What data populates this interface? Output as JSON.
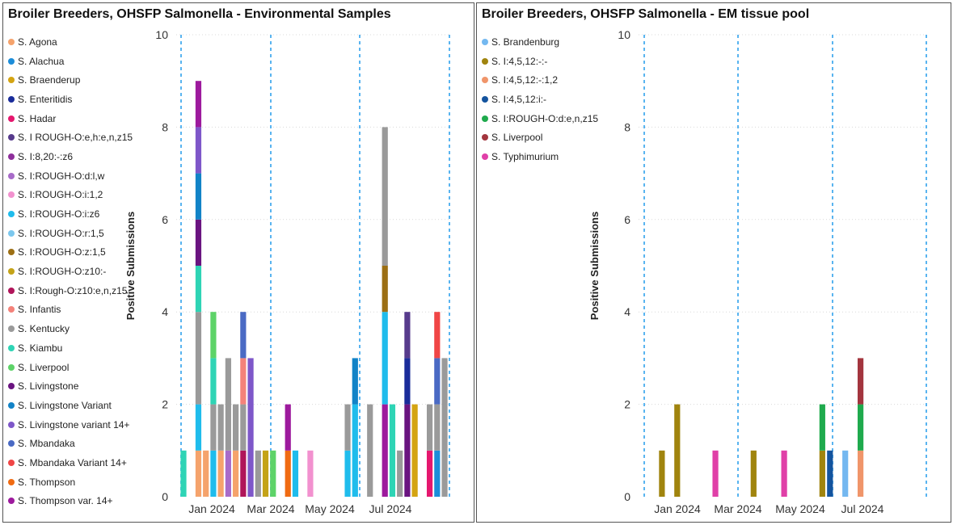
{
  "chart_data": [
    {
      "type": "bar",
      "stacked": true,
      "title": "Broiler Breeders, OHSFP Salmonella - Environmental Samples",
      "ylabel": "Positive Submissions",
      "xlabel": "",
      "ylim": [
        0,
        10
      ],
      "yticks": [
        0,
        2,
        4,
        6,
        8,
        10
      ],
      "xticks": [
        "Jan 2024",
        "Mar 2024",
        "May 2024",
        "Jul 2024"
      ],
      "grid": true,
      "legend_position": "left",
      "legend": [
        {
          "name": "S. Agona",
          "color": "#F5A36C"
        },
        {
          "name": "S. Alachua",
          "color": "#1C8DD9"
        },
        {
          "name": "S. Braenderup",
          "color": "#D4A412"
        },
        {
          "name": "S. Enteritidis",
          "color": "#1A2C9A"
        },
        {
          "name": "S. Hadar",
          "color": "#E5176E"
        },
        {
          "name": "S. I ROUGH-O:e,h:e,n,z15",
          "color": "#573B8C"
        },
        {
          "name": "S. I:8,20:-:z6",
          "color": "#8E2F9B"
        },
        {
          "name": "S. I:ROUGH-O:d:l,w",
          "color": "#A86BC9"
        },
        {
          "name": "S. I:ROUGH-O:i:1,2",
          "color": "#F291CF"
        },
        {
          "name": "S. I:ROUGH-O:i:z6",
          "color": "#1FBCEC"
        },
        {
          "name": "S. I:ROUGH-O:r:1,5",
          "color": "#7CC8EE"
        },
        {
          "name": "S. I:ROUGH-O:z:1,5",
          "color": "#9C6F14"
        },
        {
          "name": "S. I:ROUGH-O:z10:-",
          "color": "#C4A318"
        },
        {
          "name": "S. I:Rough-O:z10:e,n,z15",
          "color": "#B0155A"
        },
        {
          "name": "S. Infantis",
          "color": "#F4827A"
        },
        {
          "name": "S. Kentucky",
          "color": "#9A9A9A"
        },
        {
          "name": "S. Kiambu",
          "color": "#2ED4B5"
        },
        {
          "name": "S. Liverpool",
          "color": "#5DD368"
        },
        {
          "name": "S. Livingstone",
          "color": "#6A1480"
        },
        {
          "name": "S. Livingstone Variant",
          "color": "#1283C7"
        },
        {
          "name": "S. Livingstone variant 14+",
          "color": "#7E57C9"
        },
        {
          "name": "S. Mbandaka",
          "color": "#4A6AC4"
        },
        {
          "name": "S. Mbandaka Variant 14+",
          "color": "#F04646"
        },
        {
          "name": "S. Thompson",
          "color": "#F06B12"
        },
        {
          "name": "S. Thompson var. 14+",
          "color": "#9D1A9D"
        }
      ],
      "weeks": [
        {
          "stack": [
            {
              "s": "S. Kiambu",
              "v": 1
            }
          ]
        },
        {
          "stack": []
        },
        {
          "stack": [
            {
              "s": "S. Agona",
              "v": 1
            },
            {
              "s": "S. I:ROUGH-O:i:z6",
              "v": 1
            },
            {
              "s": "S. Kentucky",
              "v": 2
            },
            {
              "s": "S. Kiambu",
              "v": 1
            },
            {
              "s": "S. Livingstone",
              "v": 1
            },
            {
              "s": "S. Livingstone Variant",
              "v": 1
            },
            {
              "s": "S. Livingstone variant 14+",
              "v": 1
            },
            {
              "s": "S. Thompson var. 14+",
              "v": 1
            }
          ]
        },
        {
          "stack": [
            {
              "s": "S. Agona",
              "v": 1
            }
          ]
        },
        {
          "stack": [
            {
              "s": "S. I:ROUGH-O:i:z6",
              "v": 1
            },
            {
              "s": "S. Kentucky",
              "v": 1
            },
            {
              "s": "S. Kiambu",
              "v": 1
            },
            {
              "s": "S. Liverpool",
              "v": 1
            }
          ]
        },
        {
          "stack": [
            {
              "s": "S. Agona",
              "v": 1
            },
            {
              "s": "S. Kentucky",
              "v": 1
            }
          ]
        },
        {
          "stack": [
            {
              "s": "S. I:ROUGH-O:d:l,w",
              "v": 1
            },
            {
              "s": "S. Kentucky",
              "v": 2
            }
          ]
        },
        {
          "stack": [
            {
              "s": "S. Agona",
              "v": 1
            },
            {
              "s": "S. Kentucky",
              "v": 1
            }
          ]
        },
        {
          "stack": [
            {
              "s": "S. I:Rough-O:z10:e,n,z15",
              "v": 1
            },
            {
              "s": "S. Kentucky",
              "v": 1
            },
            {
              "s": "S. Infantis",
              "v": 1
            },
            {
              "s": "S. Mbandaka",
              "v": 1
            }
          ]
        },
        {
          "stack": [
            {
              "s": "S. Livingstone variant 14+",
              "v": 3
            }
          ]
        },
        {
          "stack": [
            {
              "s": "S. Kentucky",
              "v": 1
            }
          ]
        },
        {
          "stack": [
            {
              "s": "S. I:ROUGH-O:z10:-",
              "v": 1
            }
          ]
        },
        {
          "stack": [
            {
              "s": "S. Liverpool",
              "v": 1
            }
          ]
        },
        {
          "stack": []
        },
        {
          "stack": [
            {
              "s": "S. Thompson",
              "v": 1
            },
            {
              "s": "S. Thompson var. 14+",
              "v": 1
            }
          ]
        },
        {
          "stack": [
            {
              "s": "S. I:ROUGH-O:i:z6",
              "v": 1
            }
          ]
        },
        {
          "stack": []
        },
        {
          "stack": [
            {
              "s": "S. I:ROUGH-O:i:1,2",
              "v": 1
            }
          ]
        },
        {
          "stack": []
        },
        {
          "stack": []
        },
        {
          "stack": []
        },
        {
          "stack": []
        },
        {
          "stack": [
            {
              "s": "S. I:ROUGH-O:i:z6",
              "v": 1
            },
            {
              "s": "S. Kentucky",
              "v": 1
            }
          ]
        },
        {
          "stack": [
            {
              "s": "S. I:ROUGH-O:i:z6",
              "v": 2
            },
            {
              "s": "S. Livingstone Variant",
              "v": 1
            }
          ]
        },
        {
          "stack": []
        },
        {
          "stack": [
            {
              "s": "S. Kentucky",
              "v": 2
            }
          ]
        },
        {
          "stack": []
        },
        {
          "stack": [
            {
              "s": "S. Thompson var. 14+",
              "v": 2
            },
            {
              "s": "S. I:ROUGH-O:i:z6",
              "v": 2
            },
            {
              "s": "S. I:ROUGH-O:z:1,5",
              "v": 1
            },
            {
              "s": "S. Kentucky",
              "v": 3
            }
          ]
        },
        {
          "stack": [
            {
              "s": "S. Kiambu",
              "v": 2
            }
          ]
        },
        {
          "stack": [
            {
              "s": "S. Kentucky",
              "v": 1
            }
          ]
        },
        {
          "stack": [
            {
              "s": "S. Livingstone",
              "v": 2
            },
            {
              "s": "S. Enteritidis",
              "v": 1
            },
            {
              "s": "S. I ROUGH-O:e,h:e,n,z15",
              "v": 1
            }
          ]
        },
        {
          "stack": [
            {
              "s": "S. Braenderup",
              "v": 2
            }
          ]
        },
        {
          "stack": []
        },
        {
          "stack": [
            {
              "s": "S. Hadar",
              "v": 1
            },
            {
              "s": "S. Kentucky",
              "v": 1
            }
          ]
        },
        {
          "stack": [
            {
              "s": "S. Alachua",
              "v": 1
            },
            {
              "s": "S. Kentucky",
              "v": 1
            },
            {
              "s": "S. Mbandaka",
              "v": 1
            },
            {
              "s": "S. Mbandaka Variant 14+",
              "v": 1
            }
          ]
        },
        {
          "stack": [
            {
              "s": "S. Kentucky",
              "v": 3
            }
          ]
        }
      ]
    },
    {
      "type": "bar",
      "stacked": true,
      "title": "Broiler Breeders, OHSFP Salmonella - EM tissue pool",
      "ylabel": "Positive Submissions",
      "xlabel": "",
      "ylim": [
        0,
        10
      ],
      "yticks": [
        0,
        2,
        4,
        6,
        8,
        10
      ],
      "xticks": [
        "Jan 2024",
        "Mar 2024",
        "May 2024",
        "Jul 2024"
      ],
      "grid": true,
      "legend_position": "left",
      "legend": [
        {
          "name": "S. Brandenburg",
          "color": "#74B8F0"
        },
        {
          "name": "S. I:4,5,12:-:-",
          "color": "#A0840E"
        },
        {
          "name": "S. I:4,5,12:-:1,2",
          "color": "#F0956A"
        },
        {
          "name": "S. I:4,5,12:i:-",
          "color": "#14549E"
        },
        {
          "name": "S. I:ROUGH-O:d:e,n,z15",
          "color": "#1FAA4D"
        },
        {
          "name": "S. Liverpool",
          "color": "#A3353E"
        },
        {
          "name": "S. Typhimurium",
          "color": "#E040A8"
        }
      ],
      "weeks": [
        {
          "stack": []
        },
        {
          "stack": []
        },
        {
          "stack": [
            {
              "s": "S. I:4,5,12:-:-",
              "v": 1
            }
          ]
        },
        {
          "stack": []
        },
        {
          "stack": [
            {
              "s": "S. I:4,5,12:-:-",
              "v": 2
            }
          ]
        },
        {
          "stack": []
        },
        {
          "stack": []
        },
        {
          "stack": []
        },
        {
          "stack": []
        },
        {
          "stack": [
            {
              "s": "S. Typhimurium",
              "v": 1
            }
          ]
        },
        {
          "stack": []
        },
        {
          "stack": []
        },
        {
          "stack": []
        },
        {
          "stack": []
        },
        {
          "stack": [
            {
              "s": "S. I:4,5,12:-:-",
              "v": 1
            }
          ]
        },
        {
          "stack": []
        },
        {
          "stack": []
        },
        {
          "stack": []
        },
        {
          "stack": [
            {
              "s": "S. Typhimurium",
              "v": 1
            }
          ]
        },
        {
          "stack": []
        },
        {
          "stack": []
        },
        {
          "stack": []
        },
        {
          "stack": []
        },
        {
          "stack": [
            {
              "s": "S. I:4,5,12:-:-",
              "v": 1
            },
            {
              "s": "S. I:ROUGH-O:d:e,n,z15",
              "v": 1
            }
          ]
        },
        {
          "stack": [
            {
              "s": "S. I:4,5,12:i:-",
              "v": 1
            }
          ]
        },
        {
          "stack": []
        },
        {
          "stack": [
            {
              "s": "S. Brandenburg",
              "v": 1
            }
          ]
        },
        {
          "stack": []
        },
        {
          "stack": [
            {
              "s": "S. I:4,5,12:-:1,2",
              "v": 1
            },
            {
              "s": "S. I:ROUGH-O:d:e,n,z15",
              "v": 1
            },
            {
              "s": "S. Liverpool",
              "v": 1
            }
          ]
        },
        {
          "stack": []
        },
        {
          "stack": []
        },
        {
          "stack": []
        },
        {
          "stack": []
        },
        {
          "stack": []
        },
        {
          "stack": []
        },
        {
          "stack": []
        }
      ]
    }
  ]
}
